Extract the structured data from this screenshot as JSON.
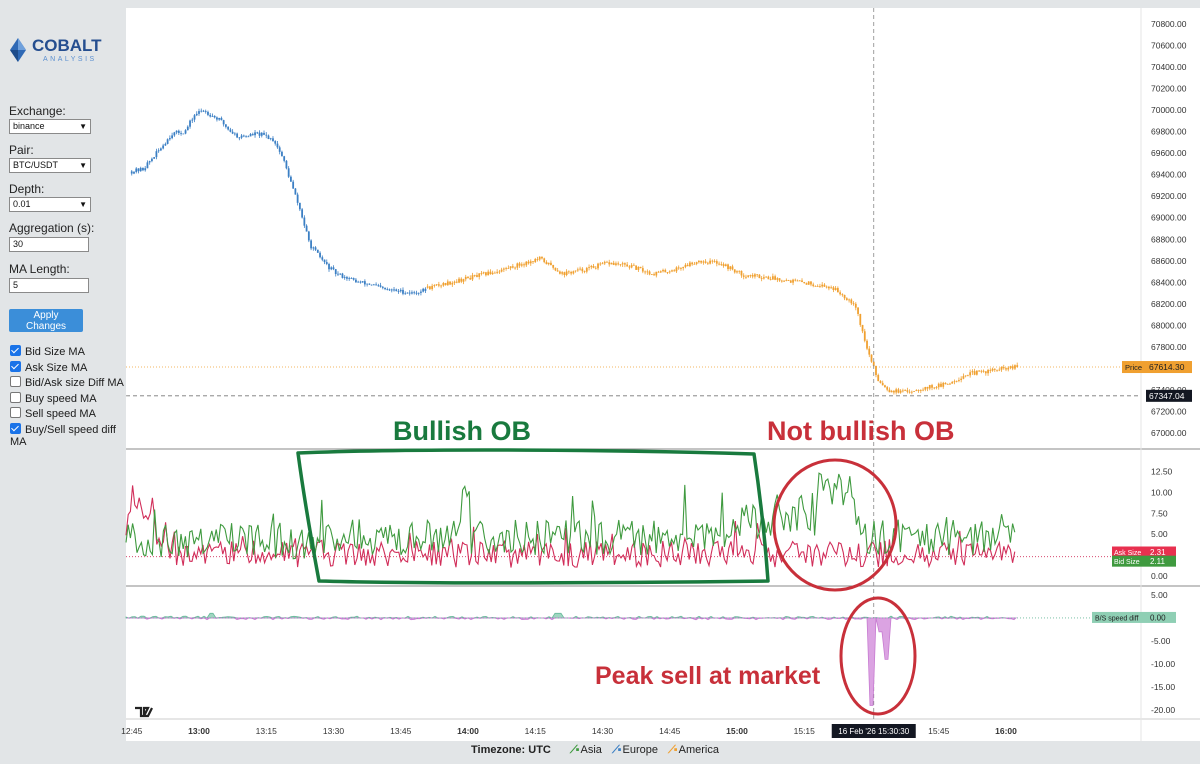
{
  "app": {
    "logo_text": "COBALT",
    "logo_subtext": "ANALYSIS"
  },
  "sidebar": {
    "exchange": {
      "label": "Exchange:",
      "value": "binance"
    },
    "pair": {
      "label": "Pair:",
      "value": "BTC/USDT"
    },
    "depth": {
      "label": "Depth:",
      "value": "0.01"
    },
    "aggregation": {
      "label": "Aggregation (s):",
      "value": "30"
    },
    "ma_length": {
      "label": "MA Length:",
      "value": "5"
    },
    "apply_label": "Apply Changes",
    "checkboxes": [
      {
        "label": "Bid Size MA",
        "checked": true
      },
      {
        "label": "Ask Size MA",
        "checked": true
      },
      {
        "label": "Bid/Ask size Diff MA",
        "checked": false
      },
      {
        "label": "Buy speed MA",
        "checked": false
      },
      {
        "label": "Sell speed MA",
        "checked": false
      },
      {
        "label": "Buy/Sell speed diff MA",
        "checked": true
      }
    ]
  },
  "footer": {
    "timezone": "Timezone: UTC",
    "legend": [
      {
        "label": "Asia",
        "color": "#3f9a3f"
      },
      {
        "label": "Europe",
        "color": "#3b7fc4"
      },
      {
        "label": "America",
        "color": "#f0a030"
      }
    ]
  },
  "chart_data": [
    {
      "type": "candlestick",
      "panel": "price",
      "yaxis_ticks": [
        "70800.00",
        "70600.00",
        "70400.00",
        "70200.00",
        "70000.00",
        "69800.00",
        "69600.00",
        "69400.00",
        "69200.00",
        "69000.00",
        "68800.00",
        "68600.00",
        "68400.00",
        "68200.00",
        "68000.00",
        "67800.00",
        "67600.00",
        "67400.00",
        "67200.00",
        "67000.00"
      ],
      "ylim": [
        66900,
        70900
      ],
      "price_label": "Price",
      "price_value": "67614.30",
      "crosshair_value": "67347.04",
      "annotations": [
        "Bullish OB",
        "Not bullish OB"
      ],
      "session_colors": {
        "europe": "#3b7fc4",
        "america": "#f0a030"
      },
      "series": [
        {
          "name": "Europe",
          "x_range": [
            "12:45",
            "13:51"
          ],
          "price_path": [
            [
              0,
              69430
            ],
            [
              5,
              69450
            ],
            [
              12,
              69620
            ],
            [
              18,
              69780
            ],
            [
              24,
              69800
            ],
            [
              28,
              69950
            ],
            [
              32,
              70000
            ],
            [
              36,
              69950
            ],
            [
              40,
              69900
            ],
            [
              44,
              69810
            ],
            [
              48,
              69750
            ],
            [
              52,
              69760
            ],
            [
              56,
              69780
            ],
            [
              60,
              69760
            ],
            [
              64,
              69720
            ],
            [
              68,
              69550
            ],
            [
              72,
              69300
            ],
            [
              76,
              69050
            ],
            [
              80,
              68750
            ],
            [
              84,
              68650
            ],
            [
              88,
              68550
            ],
            [
              92,
              68480
            ],
            [
              96,
              68450
            ],
            [
              102,
              68400
            ],
            [
              108,
              68380
            ],
            [
              114,
              68330
            ],
            [
              120,
              68320
            ],
            [
              126,
              68300
            ],
            [
              132,
              68330
            ]
          ]
        },
        {
          "name": "America",
          "x_range": [
            "13:51",
            "16:03"
          ],
          "price_path": [
            [
              0,
              68350
            ],
            [
              10,
              68400
            ],
            [
              20,
              68450
            ],
            [
              30,
              68500
            ],
            [
              40,
              68560
            ],
            [
              50,
              68620
            ],
            [
              60,
              68480
            ],
            [
              70,
              68520
            ],
            [
              80,
              68580
            ],
            [
              90,
              68550
            ],
            [
              100,
              68480
            ],
            [
              110,
              68520
            ],
            [
              120,
              68600
            ],
            [
              130,
              68580
            ],
            [
              140,
              68470
            ],
            [
              150,
              68450
            ],
            [
              160,
              68420
            ],
            [
              170,
              68390
            ],
            [
              180,
              68350
            ],
            [
              190,
              68200
            ],
            [
              195,
              67800
            ],
            [
              200,
              67500
            ],
            [
              205,
              67400
            ],
            [
              212,
              67380
            ],
            [
              220,
              67420
            ],
            [
              230,
              67450
            ],
            [
              240,
              67550
            ],
            [
              250,
              67580
            ],
            [
              262,
              67614
            ]
          ]
        }
      ]
    },
    {
      "type": "line",
      "panel": "order-book-size",
      "yaxis_ticks": [
        "12.50",
        "10.00",
        "7.50",
        "5.00",
        "2.50",
        "0.00"
      ],
      "ylim": [
        -0.5,
        14.5
      ],
      "series": [
        {
          "name": "Ask Size",
          "color": "#d12e5a",
          "last_value": "2.31",
          "mean": 2.4
        },
        {
          "name": "Bid Size",
          "color": "#3f9a3f",
          "last_value": "2.11",
          "mean": 4.5
        }
      ]
    },
    {
      "type": "area",
      "panel": "speed-diff",
      "yaxis_ticks": [
        "5.00",
        "0.00",
        "-5.00",
        "-10.00",
        "-15.00",
        "-20.00"
      ],
      "ylim": [
        -21.5,
        6.5
      ],
      "series": [
        {
          "name": "B/S speed diff",
          "color": "#67b99a",
          "negative_color": "#c77bd1",
          "last_value": "0.00",
          "min_value": -19
        }
      ],
      "annotation": "Peak sell at market"
    }
  ],
  "xaxis": {
    "ticks": [
      "12:45",
      "13:00",
      "13:15",
      "13:30",
      "13:45",
      "14:00",
      "14:15",
      "14:30",
      "14:45",
      "15:00",
      "15:15",
      "15:30",
      "15:45",
      "16:00"
    ],
    "crosshair_label": "16 Feb '26   15:30:30"
  }
}
